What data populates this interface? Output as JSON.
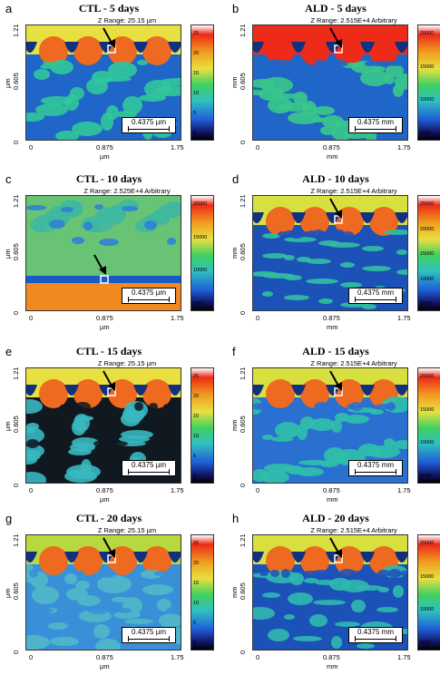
{
  "panels": [
    {
      "letter": "a",
      "title": "CTL - 5 days",
      "zrange": "Z Range: 25.15 µm",
      "unit": "µm",
      "scale": "0.4375 µm",
      "yticks": [
        "1.21",
        "0.605",
        "0"
      ],
      "xticks": [
        "0",
        "0.875",
        "1.75"
      ],
      "cbar": [
        "25",
        "20",
        "15",
        "10",
        "5",
        "0"
      ],
      "bg": "#1f66c8",
      "top": "#e8e040",
      "teeth": "#ee6a20",
      "tissue": "#30c89a"
    },
    {
      "letter": "b",
      "title": "ALD - 5 days",
      "zrange": "Z Range: 2.515E+4 Arbitrary",
      "unit": "mm",
      "scale": "0.4375 mm",
      "yticks": [
        "1.21",
        "0.605",
        "0"
      ],
      "xticks": [
        "0",
        "0.875",
        "1.75"
      ],
      "cbar": [
        "20000",
        "15000",
        "10000",
        "5000"
      ],
      "bg": "#1f66c8",
      "top": "#ee2a18",
      "teeth": "#ee2a18",
      "tissue": "#38c88a"
    },
    {
      "letter": "c",
      "title": "CTL - 10 days",
      "zrange": "Z Range: 2.525E+4 Arbitrary",
      "unit": "µm",
      "scale": "0.4375 µm",
      "yticks": [
        "1.21",
        "0.605",
        "0"
      ],
      "xticks": [
        "0",
        "0.875",
        "1.75"
      ],
      "cbar": [
        "20000",
        "15000",
        "10000",
        "5000"
      ],
      "bg": "#2d7ed8",
      "top": "#9ad040",
      "teeth": "#f08a20",
      "tissue": "#40b8a0"
    },
    {
      "letter": "d",
      "title": "ALD - 10 days",
      "zrange": "Z Range: 2.515E+4 Arbitrary",
      "unit": "mm",
      "scale": "0.4375 mm",
      "yticks": [
        "1.21",
        "0.605",
        "0"
      ],
      "xticks": [
        "0",
        "0.875",
        "1.75"
      ],
      "cbar": [
        "25000",
        "20000",
        "15000",
        "10000",
        "5000"
      ],
      "bg": "#1c52b8",
      "top": "#d8e040",
      "teeth": "#ee6a20",
      "tissue": "#32c0a0"
    },
    {
      "letter": "e",
      "title": "CTL - 15 days",
      "zrange": "Z Range: 25.15 µm",
      "unit": "µm",
      "scale": "0.4375 µm",
      "yticks": [
        "1.21",
        "0.605",
        "0"
      ],
      "xticks": [
        "0",
        "0.875",
        "1.75"
      ],
      "cbar": [
        "25",
        "20",
        "15",
        "10",
        "5",
        "0"
      ],
      "bg": "#101820",
      "top": "#e8e040",
      "teeth": "#ee6a20",
      "tissue": "#38b8c0"
    },
    {
      "letter": "f",
      "title": "ALD - 15 days",
      "zrange": "Z Range: 2.515E+4 Arbitrary",
      "unit": "mm",
      "scale": "0.4375 mm",
      "yticks": [
        "1.21",
        "0.605",
        "0"
      ],
      "xticks": [
        "0",
        "0.875",
        "1.75"
      ],
      "cbar": [
        "20000",
        "15000",
        "10000",
        "5000"
      ],
      "bg": "#2a70d0",
      "top": "#d8e040",
      "teeth": "#ee6a20",
      "tissue": "#30c0a8"
    },
    {
      "letter": "g",
      "title": "CTL - 20 days",
      "zrange": "Z Range: 25.15 µm",
      "unit": "µm",
      "scale": "0.4375 µm",
      "yticks": [
        "1.21",
        "0.605",
        "0"
      ],
      "xticks": [
        "0",
        "0.875",
        "1.75"
      ],
      "cbar": [
        "25",
        "20",
        "15",
        "10",
        "5",
        "0"
      ],
      "bg": "#3a90d8",
      "top": "#b8d840",
      "teeth": "#ee6a20",
      "tissue": "#50b8c8"
    },
    {
      "letter": "h",
      "title": "ALD - 20 days",
      "zrange": "Z Range: 2.515E+4 Arbitrary",
      "unit": "mm",
      "scale": "0.4375 mm",
      "yticks": [
        "1.21",
        "0.605",
        "0"
      ],
      "xticks": [
        "0",
        "0.875",
        "1.75"
      ],
      "cbar": [
        "20000",
        "15000",
        "10000",
        "5000"
      ],
      "bg": "#1c52b8",
      "top": "#d8e040",
      "teeth": "#ee6a20",
      "tissue": "#30b8b0"
    }
  ]
}
